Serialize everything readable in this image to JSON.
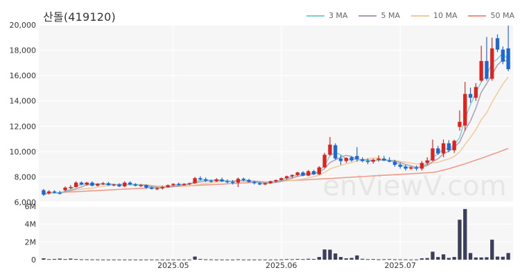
{
  "title": "산돌(419120)",
  "legend": [
    {
      "label": "3 MA",
      "color": "#76cdd2"
    },
    {
      "label": "5 MA",
      "color": "#a899b1"
    },
    {
      "label": "10 MA",
      "color": "#f2c894"
    },
    {
      "label": "50 MA",
      "color": "#ef8f7e"
    }
  ],
  "watermark": "enViewV.com",
  "chart_data": [
    {
      "type": "candlestick",
      "title": "산돌(419120)",
      "ylim": [
        6000,
        20000
      ],
      "y_ticks": [
        "20,000",
        "18,000",
        "16,000",
        "14,000",
        "12,000",
        "10,000",
        "8,000",
        "6,000"
      ],
      "x_ticks": [
        "2025.05",
        "2025.06",
        "2025.07"
      ],
      "up_color": "#e0221d",
      "down_color": "#1e68d4",
      "candles": [
        {
          "o": 6950,
          "h": 7050,
          "l": 6500,
          "c": 6600
        },
        {
          "o": 6700,
          "h": 6950,
          "l": 6600,
          "c": 6850
        },
        {
          "o": 6850,
          "h": 6950,
          "l": 6700,
          "c": 6750
        },
        {
          "o": 6750,
          "h": 6900,
          "l": 6600,
          "c": 6700
        },
        {
          "o": 6950,
          "h": 7250,
          "l": 6850,
          "c": 7150
        },
        {
          "o": 7150,
          "h": 7350,
          "l": 7050,
          "c": 7200
        },
        {
          "o": 7200,
          "h": 7650,
          "l": 7150,
          "c": 7550
        },
        {
          "o": 7550,
          "h": 7650,
          "l": 7350,
          "c": 7400
        },
        {
          "o": 7400,
          "h": 7600,
          "l": 7300,
          "c": 7550
        },
        {
          "o": 7550,
          "h": 7650,
          "l": 7250,
          "c": 7300
        },
        {
          "o": 7300,
          "h": 7500,
          "l": 7250,
          "c": 7450
        },
        {
          "o": 7450,
          "h": 7600,
          "l": 7350,
          "c": 7500
        },
        {
          "o": 7500,
          "h": 7600,
          "l": 7300,
          "c": 7350
        },
        {
          "o": 7350,
          "h": 7450,
          "l": 7250,
          "c": 7400
        },
        {
          "o": 7400,
          "h": 7500,
          "l": 7200,
          "c": 7250
        },
        {
          "o": 7250,
          "h": 7650,
          "l": 7200,
          "c": 7550
        },
        {
          "o": 7550,
          "h": 7650,
          "l": 7350,
          "c": 7400
        },
        {
          "o": 7400,
          "h": 7500,
          "l": 7250,
          "c": 7300
        },
        {
          "o": 7300,
          "h": 7450,
          "l": 7200,
          "c": 7350
        },
        {
          "o": 7350,
          "h": 7400,
          "l": 7050,
          "c": 7150
        },
        {
          "o": 7150,
          "h": 7250,
          "l": 7000,
          "c": 7050
        },
        {
          "o": 7050,
          "h": 7200,
          "l": 6950,
          "c": 7100
        },
        {
          "o": 7100,
          "h": 7300,
          "l": 7000,
          "c": 7200
        },
        {
          "o": 7200,
          "h": 7400,
          "l": 7150,
          "c": 7350
        },
        {
          "o": 7350,
          "h": 7500,
          "l": 7250,
          "c": 7450
        },
        {
          "o": 7450,
          "h": 7550,
          "l": 7300,
          "c": 7350
        },
        {
          "o": 7350,
          "h": 7500,
          "l": 7300,
          "c": 7450
        },
        {
          "o": 7450,
          "h": 7550,
          "l": 7350,
          "c": 7500
        },
        {
          "o": 7500,
          "h": 8000,
          "l": 7450,
          "c": 7900
        },
        {
          "o": 7900,
          "h": 8050,
          "l": 7700,
          "c": 7800
        },
        {
          "o": 7800,
          "h": 7950,
          "l": 7600,
          "c": 7700
        },
        {
          "o": 7700,
          "h": 7800,
          "l": 7550,
          "c": 7650
        },
        {
          "o": 7650,
          "h": 7900,
          "l": 7600,
          "c": 7800
        },
        {
          "o": 7800,
          "h": 7950,
          "l": 7600,
          "c": 7650
        },
        {
          "o": 7650,
          "h": 7800,
          "l": 7500,
          "c": 7600
        },
        {
          "o": 7600,
          "h": 7750,
          "l": 7400,
          "c": 7550
        },
        {
          "o": 7550,
          "h": 7950,
          "l": 7200,
          "c": 7850
        },
        {
          "o": 7850,
          "h": 7950,
          "l": 7650,
          "c": 7750
        },
        {
          "o": 7750,
          "h": 7850,
          "l": 7550,
          "c": 7600
        },
        {
          "o": 7600,
          "h": 7700,
          "l": 7400,
          "c": 7500
        },
        {
          "o": 7500,
          "h": 7600,
          "l": 7350,
          "c": 7400
        },
        {
          "o": 7400,
          "h": 7550,
          "l": 7350,
          "c": 7500
        },
        {
          "o": 7500,
          "h": 7700,
          "l": 7450,
          "c": 7650
        },
        {
          "o": 7650,
          "h": 7800,
          "l": 7550,
          "c": 7750
        },
        {
          "o": 7750,
          "h": 7950,
          "l": 7700,
          "c": 7900
        },
        {
          "o": 7900,
          "h": 8100,
          "l": 7800,
          "c": 8050
        },
        {
          "o": 8050,
          "h": 8200,
          "l": 7900,
          "c": 8150
        },
        {
          "o": 8150,
          "h": 8400,
          "l": 8050,
          "c": 8350
        },
        {
          "o": 8350,
          "h": 8450,
          "l": 8050,
          "c": 8100
        },
        {
          "o": 8100,
          "h": 8550,
          "l": 8050,
          "c": 8450
        },
        {
          "o": 8450,
          "h": 8550,
          "l": 8150,
          "c": 8200
        },
        {
          "o": 8200,
          "h": 8850,
          "l": 8150,
          "c": 8750
        },
        {
          "o": 8750,
          "h": 9900,
          "l": 8700,
          "c": 9750
        },
        {
          "o": 9750,
          "h": 11150,
          "l": 9650,
          "c": 10550
        },
        {
          "o": 10500,
          "h": 10650,
          "l": 9350,
          "c": 9450
        },
        {
          "o": 9450,
          "h": 9700,
          "l": 8950,
          "c": 9250
        },
        {
          "o": 9250,
          "h": 9550,
          "l": 9100,
          "c": 9500
        },
        {
          "o": 9550,
          "h": 9650,
          "l": 9200,
          "c": 9300
        },
        {
          "o": 9650,
          "h": 10350,
          "l": 9200,
          "c": 9400
        },
        {
          "o": 9400,
          "h": 9550,
          "l": 9150,
          "c": 9250
        },
        {
          "o": 9250,
          "h": 9450,
          "l": 9000,
          "c": 9200
        },
        {
          "o": 9200,
          "h": 9450,
          "l": 9050,
          "c": 9350
        },
        {
          "o": 9350,
          "h": 9700,
          "l": 9200,
          "c": 9450
        },
        {
          "o": 9450,
          "h": 9650,
          "l": 9250,
          "c": 9300
        },
        {
          "o": 9300,
          "h": 9550,
          "l": 9150,
          "c": 9200
        },
        {
          "o": 9200,
          "h": 9350,
          "l": 8800,
          "c": 8950
        },
        {
          "o": 8950,
          "h": 9100,
          "l": 8650,
          "c": 8800
        },
        {
          "o": 8800,
          "h": 8950,
          "l": 8500,
          "c": 8650
        },
        {
          "o": 8650,
          "h": 8850,
          "l": 8550,
          "c": 8750
        },
        {
          "o": 8750,
          "h": 8900,
          "l": 8500,
          "c": 8650
        },
        {
          "o": 8650,
          "h": 9250,
          "l": 8500,
          "c": 9100
        },
        {
          "o": 9100,
          "h": 9550,
          "l": 8950,
          "c": 9300
        },
        {
          "o": 9300,
          "h": 10950,
          "l": 9250,
          "c": 10250
        },
        {
          "o": 10250,
          "h": 10450,
          "l": 9750,
          "c": 9850
        },
        {
          "o": 9850,
          "h": 10950,
          "l": 9550,
          "c": 10650
        },
        {
          "o": 10650,
          "h": 10900,
          "l": 9950,
          "c": 10100
        },
        {
          "o": 10100,
          "h": 10950,
          "l": 9900,
          "c": 10850
        },
        {
          "o": 11950,
          "h": 13250,
          "l": 11650,
          "c": 12350
        },
        {
          "o": 12050,
          "h": 15500,
          "l": 11650,
          "c": 14550
        },
        {
          "o": 14550,
          "h": 15050,
          "l": 13850,
          "c": 14250
        },
        {
          "o": 14250,
          "h": 15400,
          "l": 14000,
          "c": 15100
        },
        {
          "o": 15600,
          "h": 18350,
          "l": 15500,
          "c": 17150
        },
        {
          "o": 17150,
          "h": 19050,
          "l": 15600,
          "c": 15750
        },
        {
          "o": 15750,
          "h": 19000,
          "l": 15600,
          "c": 18150
        },
        {
          "o": 18950,
          "h": 19250,
          "l": 17850,
          "c": 18050
        },
        {
          "o": 18050,
          "h": 18300,
          "l": 16900,
          "c": 17100
        },
        {
          "o": 18150,
          "h": 19950,
          "l": 16350,
          "c": 16500
        }
      ],
      "volume_ticks": [
        "6M",
        "4M",
        "2M",
        "0"
      ],
      "volume_color": "#3b3f5c",
      "volume_ylim": [
        0,
        6000000
      ],
      "volume": [
        150000,
        60000,
        80000,
        120000,
        60000,
        120000,
        70000,
        40000,
        40000,
        30000,
        30000,
        20000,
        20000,
        20000,
        20000,
        20000,
        20000,
        20000,
        20000,
        20000,
        20000,
        20000,
        20000,
        20000,
        20000,
        20000,
        20000,
        20000,
        350000,
        80000,
        40000,
        30000,
        20000,
        20000,
        20000,
        20000,
        40000,
        20000,
        20000,
        20000,
        20000,
        20000,
        20000,
        20000,
        30000,
        60000,
        50000,
        80000,
        60000,
        100000,
        80000,
        300000,
        1150000,
        1130000,
        700000,
        300000,
        150000,
        200000,
        480000,
        100000,
        60000,
        70000,
        40000,
        50000,
        60000,
        40000,
        40000,
        30000,
        20000,
        30000,
        150000,
        180000,
        900000,
        300000,
        600000,
        200000,
        300000,
        4500000,
        5700000,
        750000,
        250000,
        250000,
        270000,
        2250000,
        350000,
        330000,
        750000
      ]
    }
  ]
}
